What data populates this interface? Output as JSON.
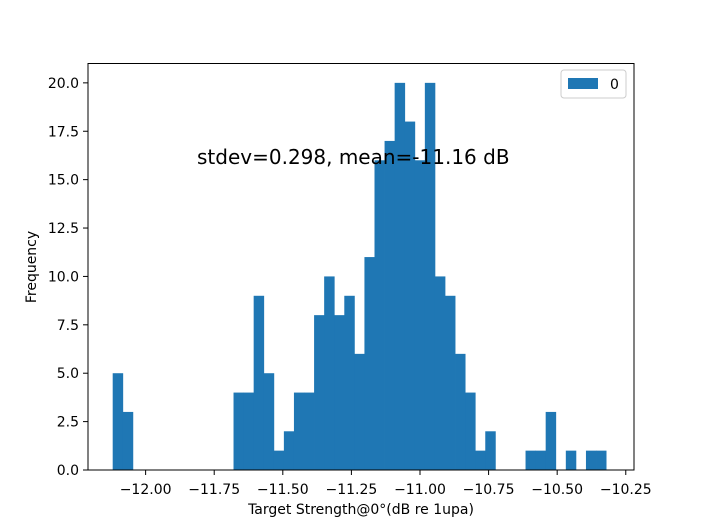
{
  "chart_data": {
    "type": "bar",
    "title": "",
    "xlabel": "Target Strength@0°(dB re 1upa)",
    "ylabel": "Frequency",
    "annotation": "stdev=0.298, mean=-11.16 dB",
    "xlim": [
      -12.21,
      -10.22
    ],
    "ylim": [
      0,
      21
    ],
    "grid": false,
    "legend": {
      "placement": "upper right",
      "entries": [
        "0"
      ]
    },
    "bar_color": "#1f77b4",
    "xticks": [
      {
        "value": -12.0,
        "label": "−12.00"
      },
      {
        "value": -11.75,
        "label": "−11.75"
      },
      {
        "value": -11.5,
        "label": "−11.50"
      },
      {
        "value": -11.25,
        "label": "−11.25"
      },
      {
        "value": -11.0,
        "label": "−11.00"
      },
      {
        "value": -10.75,
        "label": "−10.75"
      },
      {
        "value": -10.5,
        "label": "−10.50"
      },
      {
        "value": -10.25,
        "label": "−10.25"
      }
    ],
    "yticks": [
      {
        "value": 0,
        "label": "0.0"
      },
      {
        "value": 2.5,
        "label": "2.5"
      },
      {
        "value": 5,
        "label": "5.0"
      },
      {
        "value": 7.5,
        "label": "7.5"
      },
      {
        "value": 10,
        "label": "10.0"
      },
      {
        "value": 12.5,
        "label": "12.5"
      },
      {
        "value": 15,
        "label": "15.0"
      },
      {
        "value": 17.5,
        "label": "17.5"
      },
      {
        "value": 20,
        "label": "20.0"
      }
    ],
    "bin_start": -12.12,
    "bin_width": 0.0367,
    "series": [
      {
        "name": "0",
        "values": [
          5,
          3,
          0,
          0,
          0,
          0,
          0,
          0,
          0,
          0,
          0,
          0,
          4,
          4,
          9,
          5,
          1,
          2,
          4,
          4,
          8,
          10,
          8,
          9,
          6,
          11,
          16,
          17,
          20,
          18,
          16,
          20,
          10,
          9,
          6,
          4,
          1,
          2,
          0,
          0,
          0,
          1,
          1,
          3,
          0,
          1,
          0,
          1,
          1
        ]
      }
    ]
  }
}
